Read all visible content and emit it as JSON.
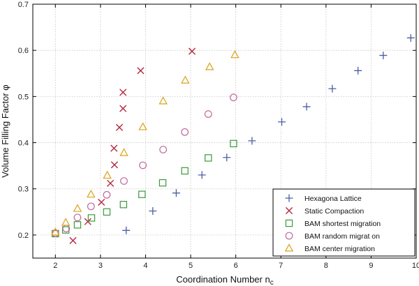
{
  "chart_data": {
    "type": "scatter",
    "title": "",
    "xlabel": "Coordination Number n",
    "xlabel_subscript": "c",
    "ylabel": "Volume Filling Factor φ",
    "xlim": [
      1.5,
      10
    ],
    "ylim": [
      0.15,
      0.7
    ],
    "xticks": [
      2,
      3,
      4,
      5,
      6,
      7,
      8,
      9,
      10
    ],
    "yticks": [
      0.2,
      0.3,
      0.4,
      0.5,
      0.6,
      0.7
    ],
    "xtick_labels": [
      "2",
      "3",
      "4",
      "5",
      "6",
      "7",
      "8",
      "9",
      "10"
    ],
    "ytick_labels": [
      "0.2",
      "0.3",
      "0.4",
      "0.5",
      "0.6",
      "0.7"
    ],
    "grid": true,
    "legend_position": "bottom-right",
    "series": [
      {
        "name": "Hexagona Lattice",
        "marker": "plus",
        "color": "#4a5fa0",
        "points": [
          [
            3.57,
            0.21
          ],
          [
            4.16,
            0.252
          ],
          [
            4.68,
            0.291
          ],
          [
            5.25,
            0.33
          ],
          [
            5.8,
            0.368
          ],
          [
            6.36,
            0.404
          ],
          [
            7.02,
            0.445
          ],
          [
            7.57,
            0.478
          ],
          [
            8.14,
            0.517
          ],
          [
            8.71,
            0.556
          ],
          [
            9.27,
            0.589
          ],
          [
            9.88,
            0.627
          ]
        ]
      },
      {
        "name": "Static Compaction",
        "marker": "x",
        "color": "#b5283e",
        "points": [
          [
            2.39,
            0.188
          ],
          [
            2.72,
            0.229
          ],
          [
            3.02,
            0.271
          ],
          [
            3.22,
            0.312
          ],
          [
            3.31,
            0.352
          ],
          [
            3.3,
            0.388
          ],
          [
            3.42,
            0.433
          ],
          [
            3.5,
            0.474
          ],
          [
            3.5,
            0.509
          ],
          [
            3.89,
            0.556
          ],
          [
            5.03,
            0.598
          ]
        ]
      },
      {
        "name": "BAM shortest migration",
        "marker": "square",
        "color": "#3a9a3a",
        "points": [
          [
            2.0,
            0.203
          ],
          [
            2.23,
            0.211
          ],
          [
            2.49,
            0.222
          ],
          [
            2.8,
            0.237
          ],
          [
            3.14,
            0.25
          ],
          [
            3.51,
            0.266
          ],
          [
            3.92,
            0.288
          ],
          [
            4.38,
            0.313
          ],
          [
            4.87,
            0.339
          ],
          [
            5.39,
            0.367
          ],
          [
            5.95,
            0.398
          ]
        ]
      },
      {
        "name": "BAM random migrat on",
        "marker": "circle",
        "color": "#c0689a",
        "points": [
          [
            2.0,
            0.204
          ],
          [
            2.24,
            0.214
          ],
          [
            2.49,
            0.238
          ],
          [
            2.79,
            0.262
          ],
          [
            3.14,
            0.287
          ],
          [
            3.52,
            0.317
          ],
          [
            3.94,
            0.351
          ],
          [
            4.39,
            0.385
          ],
          [
            4.87,
            0.423
          ],
          [
            5.39,
            0.462
          ],
          [
            5.95,
            0.498
          ]
        ]
      },
      {
        "name": "BAM center migration",
        "marker": "triangle",
        "color": "#d9a318",
        "points": [
          [
            2.0,
            0.206
          ],
          [
            2.23,
            0.227
          ],
          [
            2.49,
            0.257
          ],
          [
            2.79,
            0.288
          ],
          [
            3.15,
            0.329
          ],
          [
            3.52,
            0.378
          ],
          [
            3.94,
            0.434
          ],
          [
            4.39,
            0.49
          ],
          [
            4.88,
            0.535
          ],
          [
            5.42,
            0.564
          ],
          [
            5.98,
            0.59
          ]
        ]
      }
    ]
  }
}
